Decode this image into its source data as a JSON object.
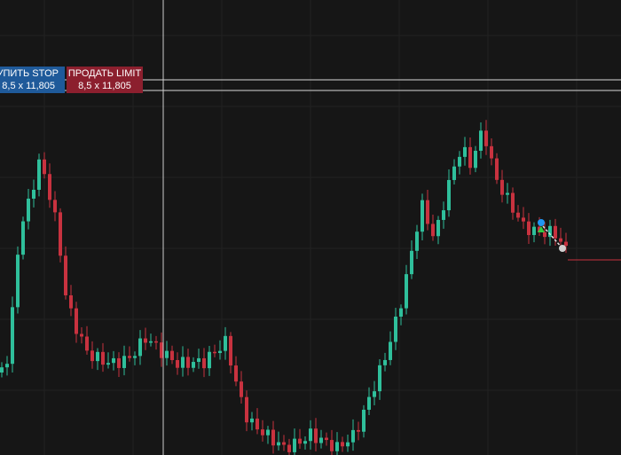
{
  "orders": [
    {
      "label": "КУПИТЬ STOP",
      "quantity": "8,5 x 11,805"
    },
    {
      "label": "ПРОДАТЬ LIMIT",
      "quantity": "8,5 x 11,805"
    }
  ]
}
